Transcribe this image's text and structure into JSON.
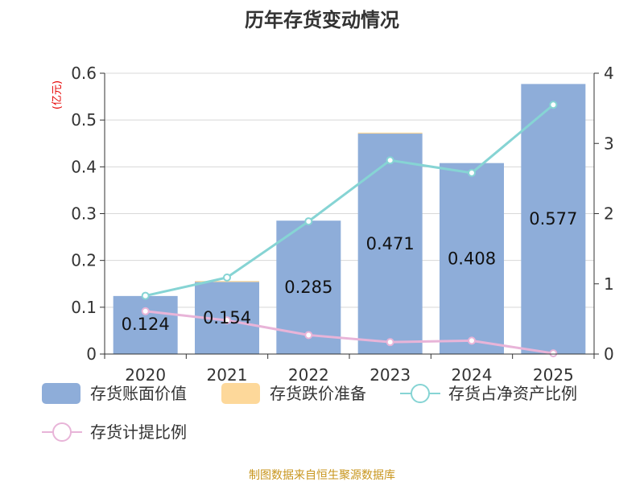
{
  "chart_data": {
    "type": "bar",
    "title": "历年存货变动情况",
    "unit_label": "(亿元)",
    "categories": [
      "2020",
      "2021",
      "2022",
      "2023",
      "2024",
      "2025"
    ],
    "y_left": {
      "ticks": [
        "0",
        "0.1",
        "0.2",
        "0.3",
        "0.4",
        "0.5",
        "0.6"
      ],
      "ylim": [
        0,
        0.6
      ]
    },
    "y_right": {
      "ticks": [
        "0",
        "1",
        "2",
        "3",
        "4"
      ],
      "ylim": [
        0,
        4
      ]
    },
    "grid": true,
    "legend_position": "bottom",
    "series": [
      {
        "name": "存货账面价值",
        "type": "bar",
        "axis": "left",
        "color": "#8eadd9",
        "values": [
          0.124,
          0.154,
          0.285,
          0.471,
          0.408,
          0.577
        ],
        "labels": [
          "0.124",
          "0.154",
          "0.285",
          "0.471",
          "0.408",
          "0.577"
        ]
      },
      {
        "name": "存货跌价准备",
        "type": "bar",
        "axis": "left",
        "color": "#fdd89a",
        "values": [
          0,
          0.001,
          0,
          0.001,
          0,
          0
        ]
      },
      {
        "name": "存货占净资产比例",
        "type": "line",
        "axis": "right",
        "color": "#86d4d4",
        "values": [
          0.83,
          1.09,
          1.89,
          2.76,
          2.58,
          3.55
        ]
      },
      {
        "name": "存货计提比例",
        "type": "line",
        "axis": "right",
        "color": "#e8b4d8",
        "values": [
          0.61,
          0.48,
          0.27,
          0.17,
          0.19,
          0.01
        ]
      }
    ]
  },
  "source": "制图数据来自恒生聚源数据库"
}
